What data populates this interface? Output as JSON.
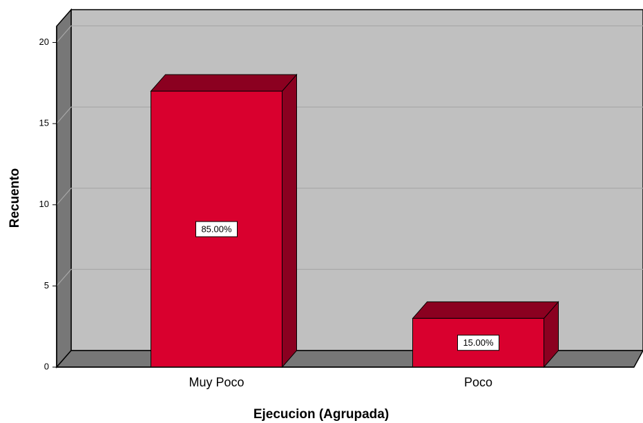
{
  "chart_data": {
    "type": "bar3d",
    "x_label": "Ejecucion (Agrupada)",
    "y_label": "Recuento",
    "categories": [
      "Muy Poco",
      "Poco"
    ],
    "values": [
      17,
      3
    ],
    "data_labels": [
      "85.00%",
      "15.00%"
    ],
    "color": "#d9002e",
    "ylim": [
      0,
      21
    ],
    "yticks": [
      0,
      5,
      10,
      15,
      20
    ],
    "grid": true
  }
}
